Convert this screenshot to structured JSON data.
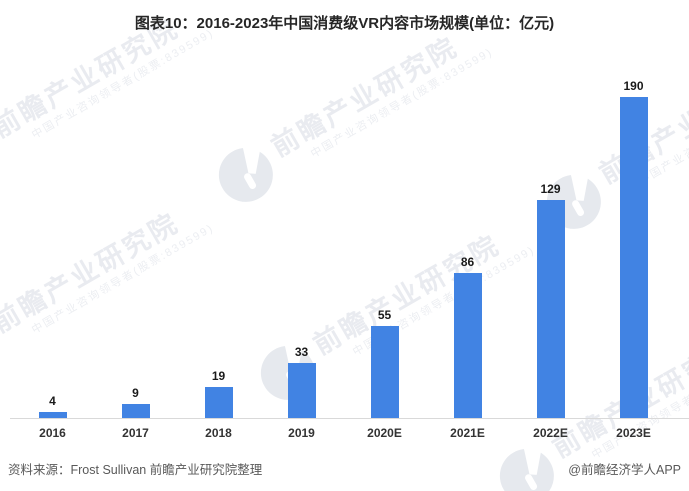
{
  "title": "图表10：2016-2023年中国消费级VR内容市场规模(单位：亿元)",
  "chart_data": {
    "type": "bar",
    "title": "图表10：2016-2023年中国消费级VR内容市场规模(单位：亿元)",
    "unit_label": "亿元",
    "categories": [
      "2016",
      "2017",
      "2018",
      "2019",
      "2020E",
      "2021E",
      "2022E",
      "2023E"
    ],
    "values": [
      4,
      9,
      19,
      33,
      55,
      86,
      129,
      190
    ],
    "xlabel": "",
    "ylabel": "",
    "ylim": [
      0,
      200
    ],
    "grid": false,
    "legend": false,
    "bar_color": "#4183e3",
    "value_label_color": "#1a1a1a",
    "axis_line_color": "#d9d9d9"
  },
  "footer": {
    "source": "资料来源：Frost Sullivan 前瞻产业研究院整理",
    "branding": "@前瞻经济学人APP"
  },
  "watermark": {
    "big_text": "前瞻产业研究院",
    "small_text": "中国产业咨询领导者(股票:839599)",
    "text_color": "#e9ebf0",
    "logo_color": "#e6e9ee"
  }
}
